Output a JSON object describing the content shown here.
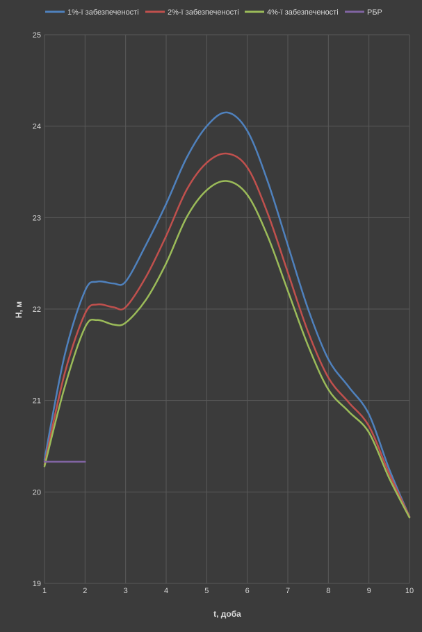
{
  "chart_data": {
    "type": "line",
    "title": "",
    "xlabel": "t, доба",
    "ylabel": "H, м",
    "xlim": [
      1,
      10
    ],
    "ylim": [
      19,
      25
    ],
    "x_ticks": [
      "1",
      "2",
      "3",
      "4",
      "5",
      "6",
      "7",
      "8",
      "9",
      "10"
    ],
    "y_ticks": [
      "19",
      "20",
      "21",
      "22",
      "23",
      "24",
      "25"
    ],
    "grid": true,
    "legend_position": "top",
    "series": [
      {
        "name": "1%-ї забезпеченості",
        "color": "#4f81bd",
        "points": [
          [
            1,
            20.35
          ],
          [
            1.5,
            21.5
          ],
          [
            2,
            22.2
          ],
          [
            2.3,
            22.3
          ],
          [
            2.7,
            22.28
          ],
          [
            3,
            22.3
          ],
          [
            3.5,
            22.7
          ],
          [
            4,
            23.15
          ],
          [
            4.5,
            23.65
          ],
          [
            5,
            24.0
          ],
          [
            5.5,
            24.15
          ],
          [
            6,
            23.95
          ],
          [
            6.5,
            23.4
          ],
          [
            7,
            22.7
          ],
          [
            7.5,
            22.0
          ],
          [
            8,
            21.45
          ],
          [
            8.5,
            21.15
          ],
          [
            9,
            20.85
          ],
          [
            9.5,
            20.25
          ],
          [
            10,
            19.73
          ]
        ]
      },
      {
        "name": "2%-ї забезпеченості",
        "color": "#c0504d",
        "points": [
          [
            1,
            20.3
          ],
          [
            1.5,
            21.3
          ],
          [
            2,
            21.95
          ],
          [
            2.3,
            22.05
          ],
          [
            2.7,
            22.02
          ],
          [
            3,
            22.02
          ],
          [
            3.5,
            22.35
          ],
          [
            4,
            22.8
          ],
          [
            4.5,
            23.3
          ],
          [
            5,
            23.6
          ],
          [
            5.5,
            23.7
          ],
          [
            6,
            23.55
          ],
          [
            6.5,
            23.05
          ],
          [
            7,
            22.4
          ],
          [
            7.5,
            21.75
          ],
          [
            8,
            21.25
          ],
          [
            8.5,
            20.98
          ],
          [
            9,
            20.72
          ],
          [
            9.5,
            20.2
          ],
          [
            10,
            19.73
          ]
        ]
      },
      {
        "name": "4%-ї забезпеченості",
        "color": "#9bbb59",
        "points": [
          [
            1,
            20.28
          ],
          [
            1.5,
            21.15
          ],
          [
            2,
            21.8
          ],
          [
            2.3,
            21.88
          ],
          [
            2.7,
            21.83
          ],
          [
            3,
            21.85
          ],
          [
            3.5,
            22.1
          ],
          [
            4,
            22.5
          ],
          [
            4.5,
            23.0
          ],
          [
            5,
            23.3
          ],
          [
            5.5,
            23.4
          ],
          [
            6,
            23.25
          ],
          [
            6.5,
            22.8
          ],
          [
            7,
            22.2
          ],
          [
            7.5,
            21.6
          ],
          [
            8,
            21.12
          ],
          [
            8.5,
            20.88
          ],
          [
            9,
            20.65
          ],
          [
            9.5,
            20.15
          ],
          [
            10,
            19.72
          ]
        ]
      },
      {
        "name": "РБР",
        "color": "#8064a2",
        "points": [
          [
            1,
            20.33
          ],
          [
            2,
            20.33
          ]
        ]
      }
    ]
  }
}
